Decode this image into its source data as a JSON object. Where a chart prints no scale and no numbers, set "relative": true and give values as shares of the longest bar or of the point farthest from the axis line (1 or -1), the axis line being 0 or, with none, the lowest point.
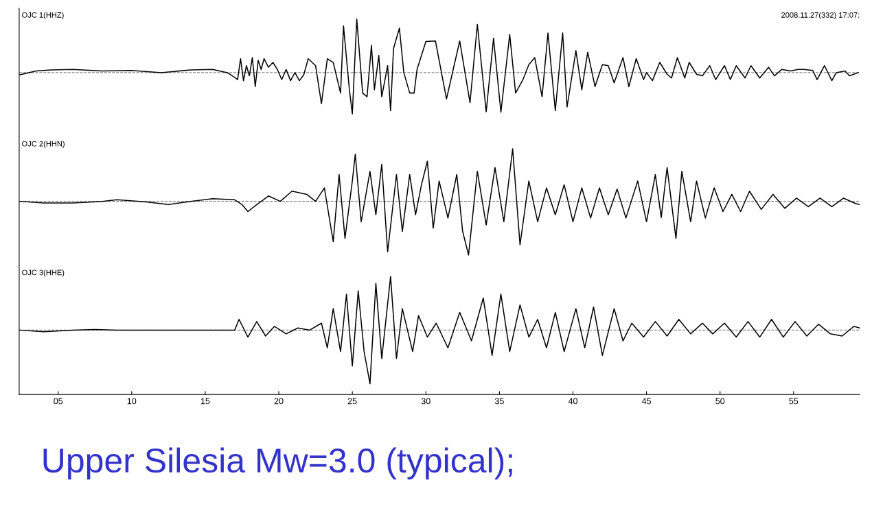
{
  "chart_data": [
    {
      "type": "line",
      "relative": true,
      "xlim": [
        2.35,
        59.5
      ],
      "tick_labels": false,
      "legend": false,
      "grid": false,
      "ref_lines": [
        {
          "axis": "y",
          "value": 0,
          "color": "#888888",
          "line_style": "dashed"
        }
      ],
      "annotations": [
        "2008.11.27(332) 17:07:"
      ],
      "series": [
        {
          "name": "OJC 1(HHZ)",
          "color": "#000000",
          "x": [
            2.4,
            3.5,
            4.5,
            6,
            8,
            10,
            12,
            14,
            15.5,
            16.5,
            17.0,
            17.2,
            17.4,
            17.6,
            17.8,
            18.0,
            18.2,
            18.4,
            18.6,
            18.8,
            19.0,
            19.3,
            19.6,
            19.9,
            20.2,
            20.5,
            20.8,
            21.1,
            21.4,
            21.7,
            22.0,
            22.5,
            22.9,
            23.3,
            23.7,
            24.2,
            24.4,
            24.8,
            25.0,
            25.3,
            25.7,
            26.0,
            26.3,
            26.5,
            26.8,
            27.0,
            27.4,
            27.6,
            27.8,
            28.2,
            28.5,
            28.9,
            29.2,
            29.4,
            30.0,
            30.65,
            31.4,
            32.3,
            33.0,
            33.5,
            34.1,
            34.6,
            35.1,
            35.7,
            36.1,
            36.6,
            37.0,
            37.4,
            37.9,
            38.3,
            38.8,
            39.3,
            39.6,
            40.2,
            40.6,
            41.0,
            41.5,
            42.0,
            42.4,
            42.8,
            43.4,
            43.8,
            44.3,
            44.8,
            45.0,
            45.4,
            45.9,
            46.4,
            46.7,
            47.1,
            47.6,
            47.9,
            48.4,
            48.8,
            49.3,
            49.7,
            50.3,
            50.7,
            51.1,
            51.7,
            52.1,
            52.7,
            53.3,
            53.7,
            54.2,
            54.8,
            55.3,
            55.7,
            56.3,
            56.6,
            57.1,
            57.6,
            57.9,
            58.5,
            58.8,
            59.4
          ],
          "values": [
            -0.04,
            0.03,
            0.05,
            0.06,
            0.03,
            0.04,
            0,
            0.05,
            0.06,
            0,
            -0.09,
            -0.13,
            0.26,
            -0.15,
            0.13,
            -0.06,
            0.28,
            -0.26,
            0.23,
            0.06,
            0.26,
            0.1,
            0.19,
            0.06,
            -0.13,
            0.06,
            -0.15,
            0,
            -0.15,
            -0.04,
            0.26,
            0.13,
            -0.58,
            0.26,
            0.19,
            -0.38,
            0.87,
            -0.32,
            -0.77,
            1,
            -0.38,
            -0.45,
            0.51,
            -0.32,
            0.32,
            -0.45,
            0.13,
            -0.71,
            0.45,
            0.83,
            0,
            -0.38,
            -0.38,
            0.06,
            0.58,
            0.59,
            -0.49,
            0.59,
            -0.56,
            0.9,
            -0.73,
            0.64,
            -0.74,
            0.71,
            -0.38,
            -0.13,
            0.15,
            0.28,
            -0.45,
            0.74,
            -0.71,
            0.74,
            -0.64,
            0.41,
            -0.32,
            0.38,
            -0.26,
            0.15,
            0.13,
            -0.19,
            0.28,
            -0.26,
            0.26,
            -0.13,
            0,
            -0.15,
            0.19,
            -0.03,
            -0.1,
            0.28,
            -0.1,
            0.19,
            -0.03,
            -0.06,
            0.13,
            -0.13,
            0.13,
            -0.13,
            0.13,
            -0.1,
            0.13,
            -0.1,
            0.1,
            -0.06,
            0.06,
            0.03,
            0.06,
            0.06,
            0.04,
            -0.13,
            0.13,
            -0.15,
            0,
            0.03,
            -0.06,
            0
          ]
        }
      ]
    },
    {
      "type": "line",
      "relative": true,
      "xlim": [
        2.35,
        59.5
      ],
      "tick_labels": false,
      "legend": false,
      "grid": false,
      "ref_lines": [
        {
          "axis": "y",
          "value": 0,
          "color": "#888888",
          "line_style": "dashed"
        }
      ],
      "series": [
        {
          "name": "OJC 2(HHN)",
          "color": "#000000",
          "x": [
            2.4,
            4,
            6,
            8,
            9,
            11,
            12.5,
            14,
            15.5,
            17,
            17.5,
            17.9,
            18.5,
            19.3,
            20.1,
            20.9,
            21.9,
            22.5,
            23.1,
            23.7,
            24.1,
            24.5,
            25.0,
            25.2,
            25.6,
            26.2,
            26.6,
            27.0,
            27.4,
            28.0,
            28.4,
            28.9,
            29.3,
            29.7,
            30.1,
            30.5,
            30.9,
            31.5,
            32.1,
            32.5,
            32.9,
            33.5,
            34.1,
            34.7,
            35.3,
            35.9,
            36.4,
            37.0,
            37.6,
            38.2,
            38.8,
            39.4,
            40.0,
            40.6,
            41.2,
            41.8,
            42.4,
            43.0,
            43.6,
            44.4,
            45.0,
            45.6,
            46.0,
            46.4,
            47.0,
            47.4,
            48.0,
            48.4,
            49.0,
            49.6,
            50.2,
            50.8,
            51.4,
            52.0,
            52.8,
            53.6,
            54.4,
            55.2,
            56.0,
            56.8,
            57.6,
            58.4,
            59.2,
            59.5
          ],
          "values": [
            0,
            -0.03,
            -0.03,
            0,
            0.03,
            -0.01,
            -0.06,
            0,
            0.05,
            0.03,
            -0.06,
            -0.19,
            -0.06,
            0.1,
            0,
            0.19,
            0.13,
            0,
            0.25,
            -0.75,
            0.5,
            -0.69,
            0.38,
            0.88,
            -0.38,
            0.56,
            -0.25,
            0.69,
            -0.94,
            0.5,
            -0.56,
            0.5,
            -0.25,
            0.31,
            0.75,
            -0.5,
            0.38,
            -0.31,
            0.5,
            -0.56,
            -1,
            0.56,
            -0.44,
            0.63,
            -0.38,
            0.98,
            -0.81,
            0.38,
            -0.38,
            0.25,
            -0.25,
            0.31,
            -0.38,
            0.25,
            -0.31,
            0.25,
            -0.25,
            0.23,
            -0.31,
            0.38,
            -0.38,
            0.5,
            -0.3,
            0.63,
            -0.69,
            0.56,
            -0.38,
            0.38,
            -0.31,
            0.25,
            -0.19,
            0.13,
            -0.19,
            0.19,
            -0.15,
            0.13,
            -0.13,
            0.06,
            -0.1,
            0.06,
            -0.1,
            0.06,
            -0.04,
            -0.06
          ]
        }
      ]
    },
    {
      "type": "line",
      "relative": true,
      "xlim": [
        2.35,
        59.5
      ],
      "xticks": [
        {
          "value": 5,
          "label": "05"
        },
        10,
        15,
        20,
        25,
        30,
        35,
        40,
        45,
        50,
        55
      ],
      "tick_labels": "x",
      "legend": false,
      "grid": false,
      "ref_lines": [
        {
          "axis": "y",
          "value": 0,
          "color": "#888888",
          "line_style": "dashed"
        }
      ],
      "annotations": [
        "Upper Silesia Mw=3.0 (typical);"
      ],
      "series": [
        {
          "name": "OJC 3(HHE)",
          "color": "#000000",
          "x": [
            2.4,
            4,
            6,
            7.5,
            9,
            14,
            17,
            17.3,
            17.9,
            18.5,
            19.1,
            19.7,
            20.5,
            21.3,
            22.1,
            22.9,
            23.3,
            23.7,
            24.2,
            24.6,
            25.0,
            25.4,
            25.8,
            26.2,
            26.6,
            27.0,
            27.6,
            28.0,
            28.4,
            29.1,
            29.5,
            30.1,
            30.7,
            31.5,
            32.3,
            33.1,
            33.9,
            34.5,
            35.1,
            35.7,
            36.4,
            37.0,
            37.6,
            38.2,
            38.8,
            39.4,
            40.2,
            40.8,
            41.4,
            42.0,
            42.8,
            43.4,
            44.0,
            44.8,
            45.6,
            46.4,
            47.2,
            48.0,
            48.8,
            49.5,
            50.3,
            51.1,
            51.9,
            52.7,
            53.5,
            54.3,
            55.1,
            55.9,
            56.7,
            57.5,
            58.3,
            59.1,
            59.5
          ],
          "values": [
            0,
            -0.03,
            0,
            0.01,
            0,
            0,
            0,
            0.2,
            -0.13,
            0.16,
            -0.11,
            0.07,
            -0.07,
            0.04,
            0,
            0.13,
            -0.33,
            0.4,
            -0.4,
            0.67,
            -0.67,
            0.73,
            -0.4,
            -1,
            0.87,
            -0.53,
            1,
            -0.53,
            0.4,
            -0.4,
            0.27,
            -0.13,
            0.13,
            -0.33,
            0.33,
            -0.2,
            0.6,
            -0.47,
            0.67,
            -0.4,
            0.47,
            -0.13,
            0.2,
            -0.33,
            0.33,
            -0.4,
            0.4,
            -0.33,
            0.43,
            -0.47,
            0.4,
            -0.2,
            0.13,
            -0.13,
            0.16,
            -0.11,
            0.2,
            -0.07,
            0.13,
            -0.07,
            0.13,
            -0.13,
            0.16,
            -0.13,
            0.2,
            -0.13,
            0.16,
            -0.11,
            0.11,
            -0.07,
            -0.11,
            0.07,
            0.04
          ]
        }
      ]
    }
  ]
}
